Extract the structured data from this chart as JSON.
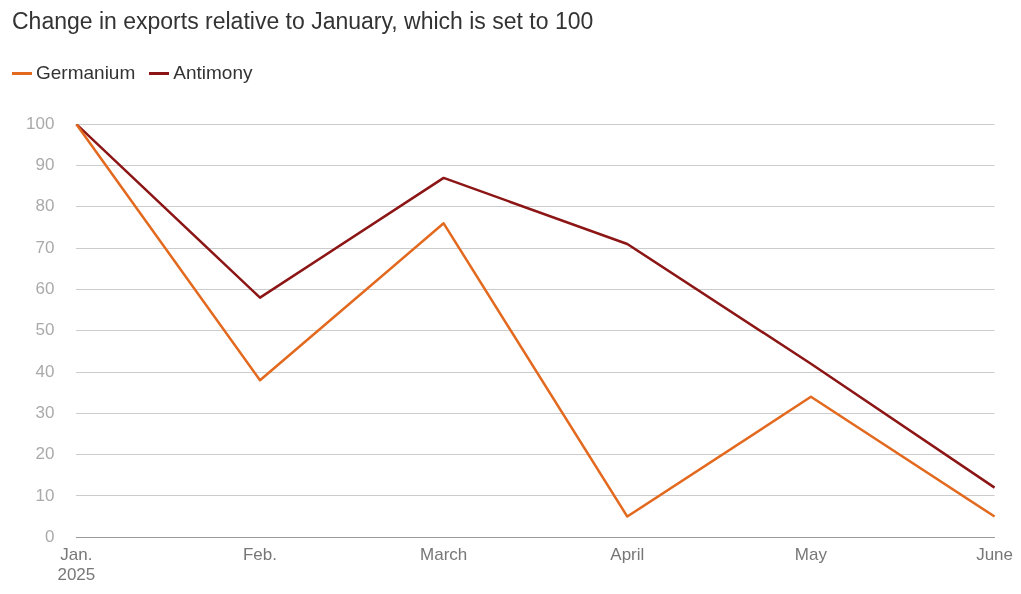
{
  "chart_data": {
    "type": "line",
    "title": "Change in exports relative to January, which is set to 100",
    "categories": [
      "Jan.\n2025",
      "Feb.",
      "March",
      "April",
      "May",
      "June"
    ],
    "series": [
      {
        "name": "Germanium",
        "color": "#e2691e",
        "values": [
          100,
          38,
          76,
          5,
          34,
          5
        ]
      },
      {
        "name": "Antimony",
        "color": "#8c1515",
        "values": [
          100,
          58,
          87,
          71,
          42,
          12
        ]
      }
    ],
    "ylim": [
      0,
      100
    ],
    "yticks": [
      0,
      10,
      20,
      30,
      40,
      50,
      60,
      70,
      80,
      90,
      100
    ],
    "grid": "y",
    "legend": "top left",
    "marker": "none",
    "line_style": "solid"
  }
}
